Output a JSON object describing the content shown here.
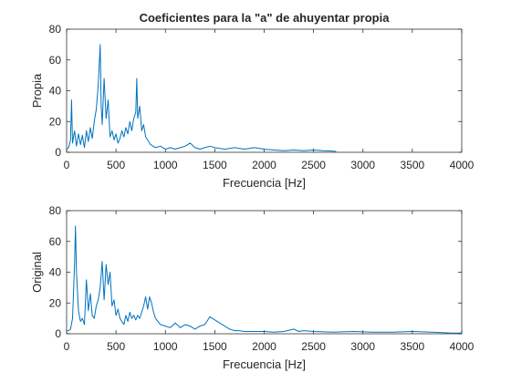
{
  "chart_data": [
    {
      "type": "line",
      "title": "Coeficientes para la \"a\" de ahuyentar propia",
      "xlabel": "Frecuencia [Hz]",
      "ylabel": "Propia",
      "xlim": [
        0,
        4000
      ],
      "ylim": [
        0,
        80
      ],
      "xticks": [
        0,
        500,
        1000,
        1500,
        2000,
        2500,
        3000,
        3500,
        4000
      ],
      "yticks": [
        0,
        20,
        40,
        60,
        80
      ],
      "grid": false,
      "color": "#0072bd",
      "series": [
        {
          "x": [
            0,
            20,
            40,
            50,
            60,
            80,
            100,
            120,
            140,
            160,
            180,
            200,
            220,
            240,
            260,
            280,
            300,
            320,
            340,
            350,
            360,
            380,
            400,
            420,
            440,
            460,
            480,
            500,
            520,
            540,
            560,
            580,
            600,
            620,
            640,
            660,
            680,
            700,
            710,
            720,
            740,
            760,
            780,
            800,
            820,
            850,
            900,
            950,
            1000,
            1050,
            1100,
            1150,
            1200,
            1250,
            1300,
            1350,
            1400,
            1450,
            1500,
            1600,
            1700,
            1800,
            1900,
            2000,
            2100,
            2200,
            2300,
            2400,
            2500,
            2600,
            2700,
            2730
          ],
          "y": [
            2,
            3,
            8,
            34,
            6,
            14,
            4,
            12,
            5,
            11,
            3,
            14,
            7,
            16,
            9,
            20,
            28,
            43,
            70,
            30,
            18,
            48,
            22,
            34,
            10,
            14,
            8,
            12,
            6,
            9,
            14,
            10,
            16,
            12,
            20,
            14,
            22,
            26,
            48,
            22,
            30,
            14,
            18,
            10,
            8,
            5,
            3,
            4,
            2,
            3,
            2,
            3,
            4,
            6,
            3,
            2,
            3,
            4,
            3,
            2,
            3,
            2,
            3,
            2,
            1.5,
            1,
            1.5,
            1,
            1.5,
            1,
            0.8,
            0.5
          ]
        }
      ]
    },
    {
      "type": "line",
      "title": "",
      "xlabel": "Frecuencia [Hz]",
      "ylabel": "Original",
      "xlim": [
        0,
        4000
      ],
      "ylim": [
        0,
        80
      ],
      "xticks": [
        0,
        500,
        1000,
        1500,
        2000,
        2500,
        3000,
        3500,
        4000
      ],
      "yticks": [
        0,
        20,
        40,
        60,
        80
      ],
      "grid": false,
      "color": "#0072bd",
      "series": [
        {
          "x": [
            0,
            20,
            40,
            60,
            80,
            90,
            100,
            120,
            140,
            160,
            180,
            200,
            220,
            240,
            260,
            280,
            300,
            320,
            340,
            360,
            380,
            400,
            420,
            440,
            460,
            480,
            500,
            520,
            540,
            560,
            580,
            600,
            620,
            640,
            660,
            680,
            700,
            720,
            740,
            760,
            780,
            800,
            820,
            840,
            860,
            880,
            900,
            950,
            1000,
            1050,
            1100,
            1150,
            1200,
            1250,
            1300,
            1350,
            1400,
            1450,
            1500,
            1550,
            1600,
            1650,
            1700,
            1750,
            1800,
            1900,
            2000,
            2100,
            2200,
            2300,
            2350,
            2400,
            2500,
            2700,
            2900,
            3100,
            3300,
            3500,
            3700,
            3900,
            4000
          ],
          "y": [
            2,
            2,
            3,
            10,
            45,
            70,
            40,
            15,
            8,
            10,
            6,
            35,
            15,
            26,
            12,
            10,
            18,
            22,
            30,
            47,
            22,
            45,
            32,
            40,
            18,
            22,
            12,
            16,
            10,
            8,
            6,
            12,
            8,
            14,
            10,
            12,
            9,
            12,
            10,
            14,
            18,
            24,
            16,
            24,
            20,
            14,
            10,
            6,
            5,
            4,
            7,
            4,
            6,
            5,
            3,
            5,
            6,
            11,
            9,
            7,
            5,
            3,
            2,
            2,
            1.5,
            1.5,
            1.5,
            1,
            1.5,
            3,
            1.5,
            2,
            1.5,
            1,
            1.5,
            1,
            1,
            1.5,
            1,
            0.5,
            0.5
          ]
        }
      ]
    }
  ]
}
